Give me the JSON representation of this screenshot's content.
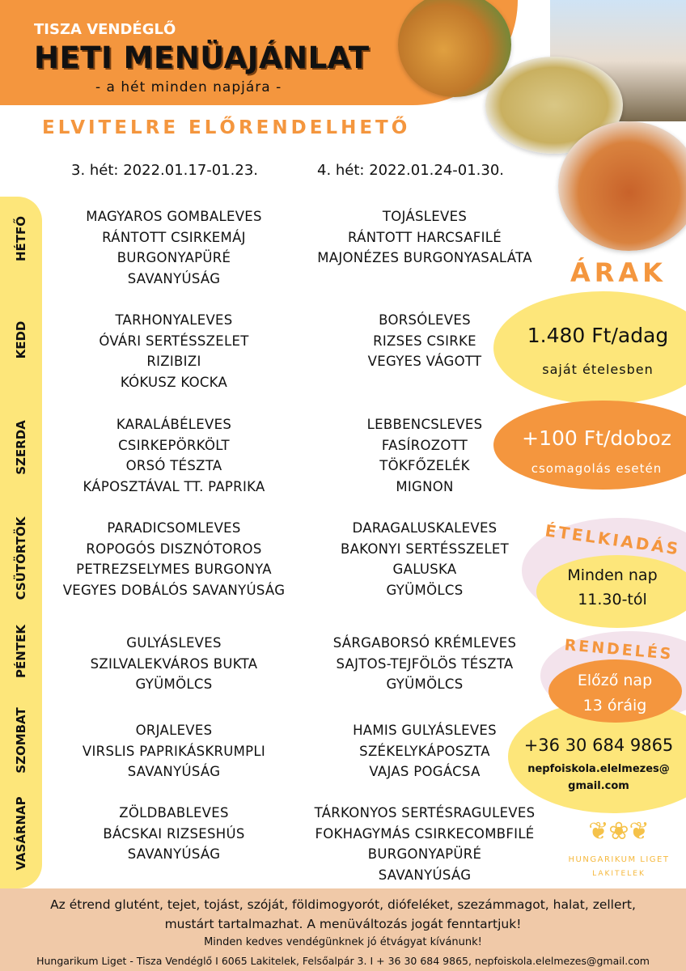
{
  "header": {
    "brand": "TISZA VENDÉGLŐ",
    "title": "HETI MENÜAJÁNLAT",
    "subtitle": "- a hét minden napjára -",
    "takeaway": "ELVITELRE ELŐRENDELHETŐ"
  },
  "weeks": [
    "3. hét: 2022.01.17-01.23.",
    "4. hét: 2022.01.24-01.30."
  ],
  "days": [
    {
      "name": "HÉTFŐ",
      "week3": [
        "MAGYAROS GOMBALEVES",
        "RÁNTOTT CSIRKEMÁJ",
        "BURGONYAPÜRÉ",
        "SAVANYÚSÁG"
      ],
      "week4": [
        "TOJÁSLEVES",
        "RÁNTOTT HARCSAFILÉ",
        "MAJONÉZES BURGONYASALÁTA"
      ]
    },
    {
      "name": "KEDD",
      "week3": [
        "TARHONYALEVES",
        "ÓVÁRI SERTÉSSZELET",
        "RIZIBIZI",
        "KÓKUSZ KOCKA"
      ],
      "week4": [
        "BORSÓLEVES",
        "RIZSES CSIRKE",
        "VEGYES VÁGOTT"
      ]
    },
    {
      "name": "SZERDA",
      "week3": [
        "KARALÁBÉLEVES",
        "CSIRKEPÖRKÖLT",
        "ORSÓ TÉSZTA",
        "KÁPOSZTÁVAL TT. PAPRIKA"
      ],
      "week4": [
        "LEBBENCSLEVES",
        "FASÍROZOTT",
        "TÖKFŐZELÉK",
        "MIGNON"
      ]
    },
    {
      "name": "CSÜTÖRTÖK",
      "week3": [
        "PARADICSOMLEVES",
        "ROPOGÓS DISZNÓTOROS",
        "PETREZSELYMES BURGONYA",
        "VEGYES DOBÁLÓS SAVANYÚSÁG"
      ],
      "week4": [
        "DARAGALUSKALEVES",
        "BAKONYI SERTÉSSZELET",
        "GALUSKA",
        "GYÜMÖLCS"
      ]
    },
    {
      "name": "PÉNTEK",
      "week3": [
        "GULYÁSLEVES",
        "SZILVALEKVÁROS BUKTA",
        "GYÜMÖLCS"
      ],
      "week4": [
        "SÁRGABORSÓ KRÉMLEVES",
        "SAJTOS-TEJFÖLÖS TÉSZTA",
        "GYÜMÖLCS"
      ]
    },
    {
      "name": "SZOMBAT",
      "week3": [
        "ORJALEVES",
        "VIRSLIS PAPRIKÁSKRUMPLI",
        "SAVANYÚSÁG"
      ],
      "week4": [
        "HAMIS GULYÁSLEVES",
        "SZÉKELYKÁPOSZTA",
        "VAJAS POGÁCSA"
      ]
    },
    {
      "name": "VASÁRNAP",
      "week3": [
        "ZÖLDBABLEVES",
        "BÁCSKAI RIZSESHÚS",
        "SAVANYÚSÁG"
      ],
      "week4": [
        "TÁRKONYOS SERTÉSRAGULEVES",
        "FOKHAGYMÁS CSIRKECOMBFILÉ",
        "BURGONYAPÜRÉ",
        "SAVANYÚSÁG"
      ]
    }
  ],
  "prices": {
    "heading": "ÁRAK",
    "price": "1.480 Ft/adag",
    "price_note": "saját ételesben",
    "box": "+100 Ft/doboz",
    "box_note": "csomagolás esetén"
  },
  "serving": {
    "heading": "ÉTELKIADÁS",
    "line1": "Minden nap",
    "line2": "11.30-tól"
  },
  "ordering": {
    "heading": "RENDELÉS",
    "line1": "Előző nap",
    "line2": "13 óráig",
    "phone": "+36 30 684 9865",
    "email1": "nepfoiskola.elelmezes@",
    "email2": "gmail.com"
  },
  "logo": {
    "name": "HUNGARIKUM LIGET",
    "place": "LAKITELEK"
  },
  "footer": {
    "allergens": "Az étrend glutént, tejet, tojást, szóját, földimogyorót, diófeléket, szezámmagot, halat, zellert,",
    "allergens2": "mustárt tartalmazhat. A menüváltozás jogát fenntartjuk!",
    "wish": "Minden kedves vendégünknek jó étvágyat kívánunk!",
    "contact": "Hungarikum Liget - Tisza Vendéglő I 6065 Lakitelek, Felsőalpár 3.  I + 36 30 684 9865, nepfoiskola.elelmezes@gmail.com"
  },
  "colors": {
    "orange": "#f4963e",
    "yellow": "#fde67a",
    "pink": "#f3e3ec",
    "footer": "#f0c9a8"
  }
}
